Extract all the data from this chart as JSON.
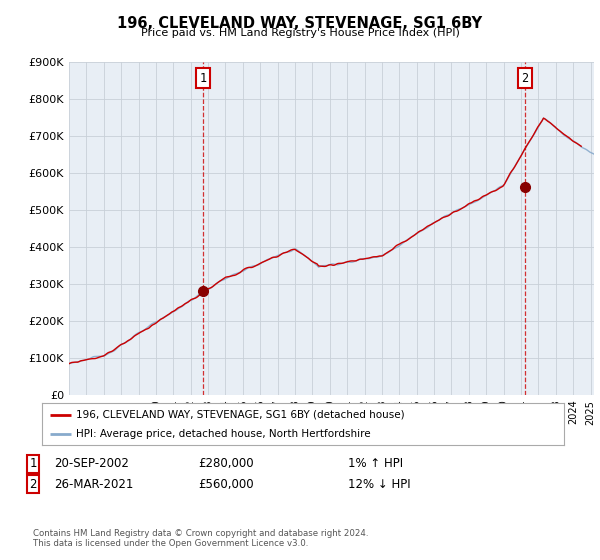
{
  "title": "196, CLEVELAND WAY, STEVENAGE, SG1 6BY",
  "subtitle": "Price paid vs. HM Land Registry's House Price Index (HPI)",
  "ylim": [
    0,
    900000
  ],
  "yticks": [
    0,
    100000,
    200000,
    300000,
    400000,
    500000,
    600000,
    700000,
    800000,
    900000
  ],
  "xlim_start": 1995.0,
  "xlim_end": 2025.2,
  "line_color_red": "#cc0000",
  "line_color_blue": "#88aacc",
  "marker1_x": 2002.72,
  "marker1_y": 280000,
  "marker2_x": 2021.23,
  "marker2_y": 560000,
  "annotation1": {
    "label": "1",
    "date": "20-SEP-2002",
    "price": "£280,000",
    "pct": "1% ↑ HPI"
  },
  "annotation2": {
    "label": "2",
    "date": "26-MAR-2021",
    "price": "£560,000",
    "pct": "12% ↓ HPI"
  },
  "legend_line1": "196, CLEVELAND WAY, STEVENAGE, SG1 6BY (detached house)",
  "legend_line2": "HPI: Average price, detached house, North Hertfordshire",
  "footer": "Contains HM Land Registry data © Crown copyright and database right 2024.\nThis data is licensed under the Open Government Licence v3.0.",
  "background_color": "#ffffff",
  "plot_bg_color": "#e8eef5",
  "grid_color": "#c8d0d8"
}
